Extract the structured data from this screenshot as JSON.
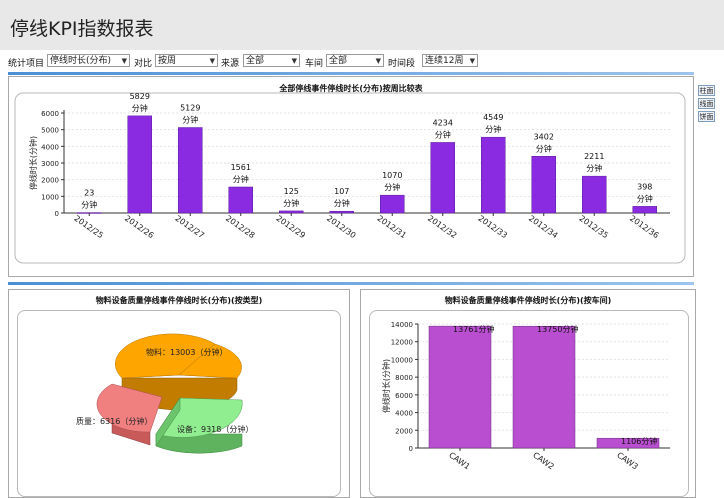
{
  "page": {
    "title": "停线KPI指数报表"
  },
  "filters": {
    "stat_item_label": "统计项目",
    "stat_item_value": "停线时长(分布)",
    "compare_label": "对比",
    "compare_value": "按周",
    "source_label": "来源",
    "source_value": "全部",
    "workshop_label": "车间",
    "workshop_value": "全部",
    "period_label": "时间段",
    "period_value": "连续12周"
  },
  "side_buttons": [
    "柱面",
    "线面",
    "饼面"
  ],
  "weekly_chart": {
    "title": "全部停线事件停线时长(分布)按周比较表",
    "ylabel": "停线时长(分钟)",
    "unit": "分钟",
    "bar_color": "#8a2be2"
  },
  "pie_chart": {
    "title": "物料设备质量停线事件停线时长(分布)(按类型)",
    "labels": [
      "物料：13003（分钟）",
      "设备：9318（分钟）",
      "质量：6316（分钟）"
    ]
  },
  "workshop_chart": {
    "title": "物料设备质量停线事件停线时长(分布)(按车间)",
    "ylabel": "停线时长(分钟)",
    "bar_color": "#b94fd0",
    "value_labels": [
      "13761分钟",
      "13750分钟",
      "1106分钟"
    ]
  },
  "chart_data": [
    {
      "type": "bar",
      "title": "全部停线事件停线时长(分布)按周比较表",
      "xlabel": "",
      "ylabel": "停线时长(分钟)",
      "categories": [
        "2012/25",
        "2012/26",
        "2012/27",
        "2012/28",
        "2012/29",
        "2012/30",
        "2012/31",
        "2012/32",
        "2012/33",
        "2012/34",
        "2012/35",
        "2012/36"
      ],
      "values": [
        23,
        5829,
        5129,
        1561,
        125,
        107,
        1070,
        4234,
        4549,
        3402,
        2211,
        398
      ],
      "ylim": [
        0,
        6000
      ],
      "yticks": [
        0,
        1000,
        2000,
        3000,
        4000,
        5000,
        6000
      ],
      "grid": true
    },
    {
      "type": "pie",
      "title": "物料设备质量停线事件停线时长(分布)(按类型)",
      "categories": [
        "物料",
        "设备",
        "质量"
      ],
      "values": [
        13003,
        9318,
        6316
      ],
      "colors": [
        "#ffa500",
        "#90ee90",
        "#f08080"
      ]
    },
    {
      "type": "bar",
      "title": "物料设备质量停线事件停线时长(分布)(按车间)",
      "xlabel": "",
      "ylabel": "停线时长(分钟)",
      "categories": [
        "CAW1",
        "CAW2",
        "CAW3"
      ],
      "values": [
        13761,
        13750,
        1106
      ],
      "ylim": [
        0,
        14000
      ],
      "yticks": [
        0,
        2000,
        4000,
        6000,
        8000,
        10000,
        12000,
        14000
      ],
      "grid": true
    }
  ]
}
